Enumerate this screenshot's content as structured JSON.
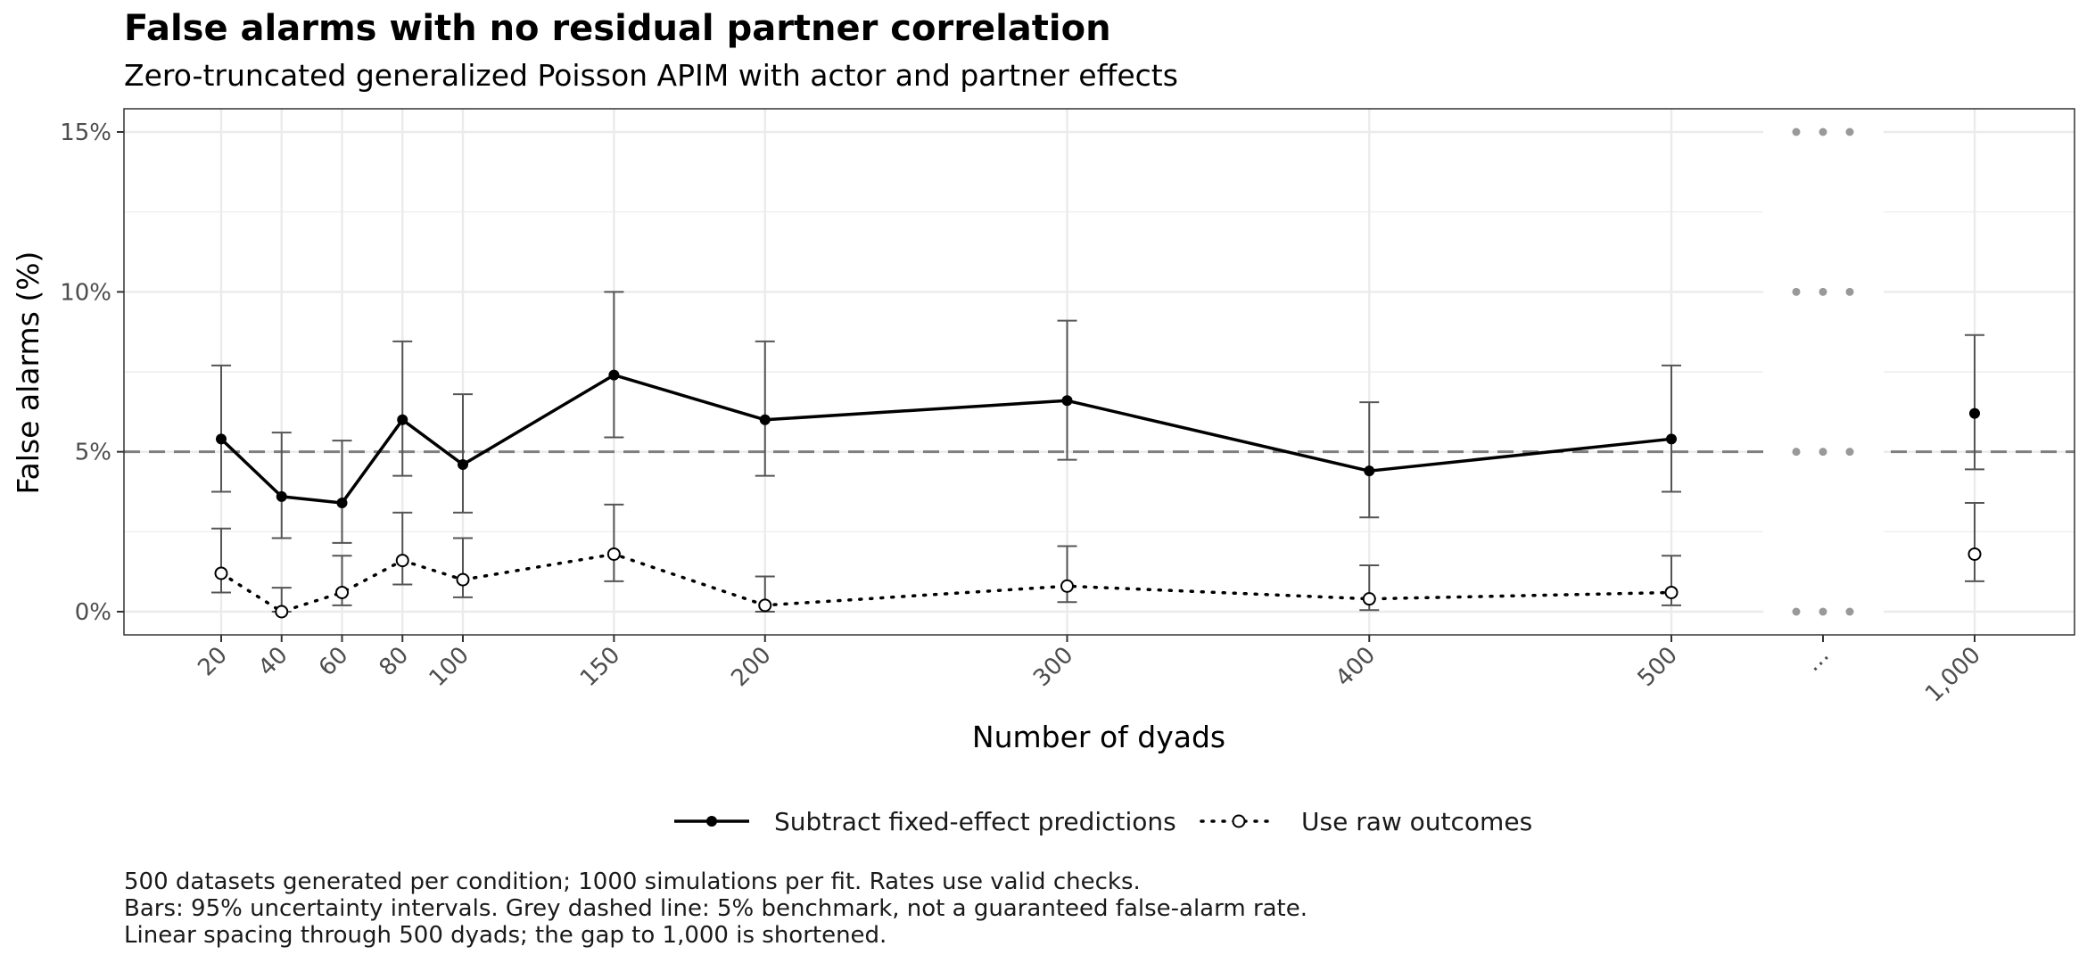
{
  "chart_data": {
    "type": "line",
    "title": "False alarms with no residual partner correlation",
    "subtitle": "Zero-truncated generalized Poisson APIM with actor and partner effects",
    "xlabel": "Number of dyads",
    "ylabel": "False alarms (%)",
    "x_categories": [
      "20",
      "40",
      "60",
      "80",
      "100",
      "150",
      "200",
      "300",
      "400",
      "500",
      "…",
      "1,000"
    ],
    "x": [
      20,
      40,
      60,
      80,
      100,
      150,
      200,
      300,
      400,
      500,
      1000
    ],
    "ylim": [
      0,
      15
    ],
    "y_ticks": [
      "0%",
      "5%",
      "10%",
      "15%"
    ],
    "y_tick_values": [
      0,
      5,
      10,
      15
    ],
    "benchmark": 5,
    "grid": true,
    "legend_position": "bottom",
    "series": [
      {
        "name": "Subtract fixed-effect predictions",
        "style": "solid",
        "marker": "filled-circle",
        "color": "#000000",
        "values": [
          5.4,
          3.6,
          3.4,
          6.0,
          4.6,
          7.4,
          6.0,
          6.6,
          4.4,
          5.4,
          6.2
        ],
        "lower": [
          3.75,
          2.3,
          2.15,
          4.25,
          3.1,
          5.45,
          4.25,
          4.75,
          2.95,
          3.75,
          4.45
        ],
        "upper": [
          7.7,
          5.6,
          5.35,
          8.45,
          6.8,
          10.0,
          8.45,
          9.1,
          6.55,
          7.7,
          8.65
        ]
      },
      {
        "name": "Use raw outcomes",
        "style": "dotted",
        "marker": "open-circle",
        "color": "#000000",
        "values": [
          1.2,
          0.0,
          0.6,
          1.6,
          1.0,
          1.8,
          0.2,
          0.8,
          0.4,
          0.6,
          1.8
        ],
        "lower": [
          0.6,
          0.0,
          0.2,
          0.85,
          0.45,
          0.95,
          0.0,
          0.3,
          0.05,
          0.2,
          0.95
        ],
        "upper": [
          2.6,
          0.75,
          1.75,
          3.1,
          2.3,
          3.35,
          1.1,
          2.05,
          1.45,
          1.75,
          3.4
        ]
      }
    ],
    "caption": [
      "500 datasets generated per condition; 1000 simulations per fit. Rates use valid checks.",
      "Bars: 95% uncertainty intervals. Grey dashed line: 5% benchmark, not a guaranteed false-alarm rate.",
      "Linear spacing through 500 dyads; the gap to 1,000 is shortened."
    ],
    "colors": {
      "grid": "#ebebeb",
      "panel_border": "#333333",
      "errorbar": "#555555",
      "benchmark": "#7f7f7f",
      "gap_dots": "#999999"
    }
  }
}
